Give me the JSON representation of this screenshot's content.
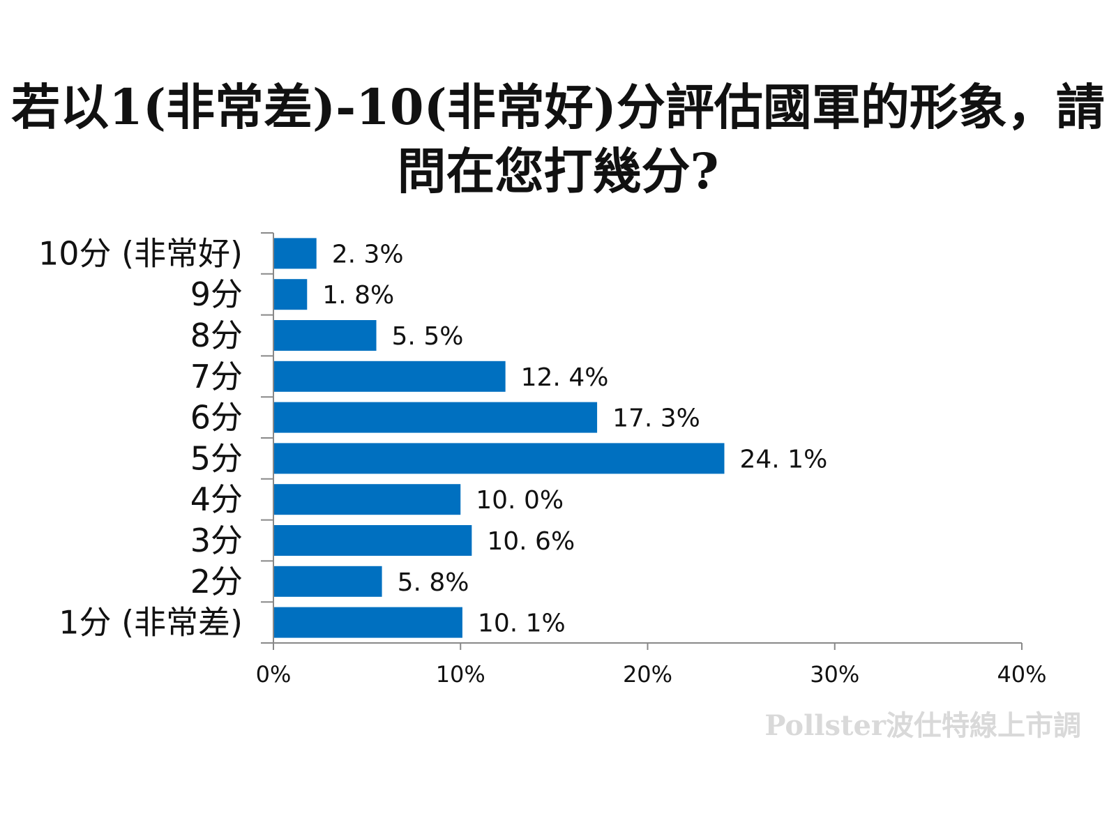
{
  "chart_data": {
    "type": "bar",
    "orientation": "horizontal",
    "title": "若以1(非常差)-10(非常好)分評估國軍的形象，請問在您打幾分?",
    "categories": [
      "10分 (非常好)",
      "9分",
      "8分",
      "7分",
      "6分",
      "5分",
      "4分",
      "3分",
      "2分",
      "1分 (非常差)"
    ],
    "values": [
      2.3,
      1.8,
      5.5,
      12.4,
      17.3,
      24.1,
      10.0,
      10.6,
      5.8,
      10.1
    ],
    "value_labels": [
      "2. 3%",
      "1. 8%",
      "5. 5%",
      "12. 4%",
      "17. 3%",
      "24. 1%",
      "10. 0%",
      "10. 6%",
      "5. 8%",
      "10. 1%"
    ],
    "xlim": [
      0,
      40
    ],
    "xticks": [
      0,
      10,
      20,
      30,
      40
    ],
    "xtick_labels": [
      "0%",
      "10%",
      "20%",
      "30%",
      "40%"
    ],
    "xlabel": "",
    "ylabel": "",
    "grid": false,
    "legend": "none",
    "bar_color": "#0070C0"
  },
  "watermark": "Pollster波仕特線上市調"
}
